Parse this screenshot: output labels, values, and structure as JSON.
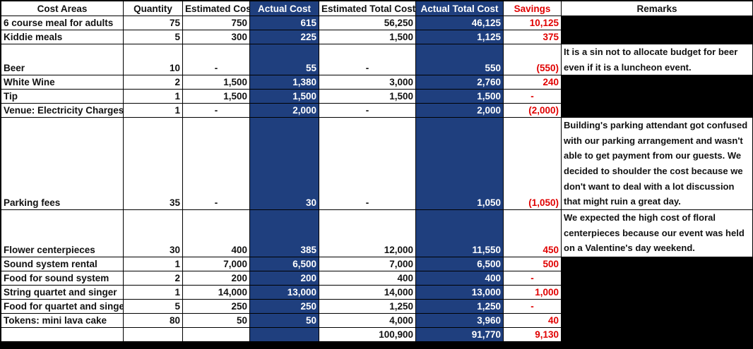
{
  "headers": {
    "cost_areas": "Cost Areas",
    "quantity": "Quantity",
    "estimated_cost": "Estimated Cost",
    "actual_cost": "Actual Cost",
    "estimated_total_cost": "Estimated Total Cost",
    "actual_total_cost": "Actual Total Cost",
    "savings": "Savings",
    "remarks": "Remarks"
  },
  "rows": [
    {
      "item": "6 course meal for adults",
      "qty": "75",
      "est": "750",
      "act": "615",
      "est_total": "56,250",
      "act_total": "46,125",
      "savings": "10,125",
      "remark": ""
    },
    {
      "item": "Kiddie meals",
      "qty": "5",
      "est": "300",
      "act": "225",
      "est_total": "1,500",
      "act_total": "1,125",
      "savings": "375",
      "remark": ""
    },
    {
      "item": "Beer",
      "qty": "10",
      "est": "-",
      "act": "55",
      "est_total": "-",
      "act_total": "550",
      "savings": "(550)",
      "remark": "It is a sin not to allocate budget for beer even if it is a luncheon event."
    },
    {
      "item": "White Wine",
      "qty": "2",
      "est": "1,500",
      "act": "1,380",
      "est_total": "3,000",
      "act_total": "2,760",
      "savings": "240",
      "remark": ""
    },
    {
      "item": "Tip",
      "qty": "1",
      "est": "1,500",
      "act": "1,500",
      "est_total": "1,500",
      "act_total": "1,500",
      "savings": "-",
      "remark": ""
    },
    {
      "item": "Venue: Electricity Charges",
      "qty": "1",
      "est": "-",
      "act": "2,000",
      "est_total": "-",
      "act_total": "2,000",
      "savings": "(2,000)",
      "remark": ""
    },
    {
      "item": "Parking fees",
      "qty": "35",
      "est": "-",
      "act": "30",
      "est_total": "-",
      "act_total": "1,050",
      "savings": "(1,050)",
      "remark": "Building's parking attendant got confused with our parking arrangement and wasn't able to get payment from our guests. We decided to shoulder the cost because we don't want to deal with a lot discussion that might ruin a great day."
    },
    {
      "item": "Flower centerpieces",
      "qty": "30",
      "est": "400",
      "act": "385",
      "est_total": "12,000",
      "act_total": "11,550",
      "savings": "450",
      "remark": "We expected the high cost of floral centerpieces because our event was held on a Valentine's day weekend."
    },
    {
      "item": "Sound system rental",
      "qty": "1",
      "est": "7,000",
      "act": "6,500",
      "est_total": "7,000",
      "act_total": "6,500",
      "savings": "500",
      "remark": ""
    },
    {
      "item": "Food for sound system",
      "qty": "2",
      "est": "200",
      "act": "200",
      "est_total": "400",
      "act_total": "400",
      "savings": "-",
      "remark": ""
    },
    {
      "item": "String quartet and singer",
      "qty": "1",
      "est": "14,000",
      "act": "13,000",
      "est_total": "14,000",
      "act_total": "13,000",
      "savings": "1,000",
      "remark": ""
    },
    {
      "item": "Food for quartet and singer",
      "qty": "5",
      "est": "250",
      "act": "250",
      "est_total": "1,250",
      "act_total": "1,250",
      "savings": "-",
      "remark": ""
    },
    {
      "item": "Tokens: mini lava cake",
      "qty": "80",
      "est": "50",
      "act": "50",
      "est_total": "4,000",
      "act_total": "3,960",
      "savings": "40",
      "remark": ""
    }
  ],
  "totals": {
    "est_total": "100,900",
    "act_total": "91,770",
    "savings": "9,130"
  }
}
